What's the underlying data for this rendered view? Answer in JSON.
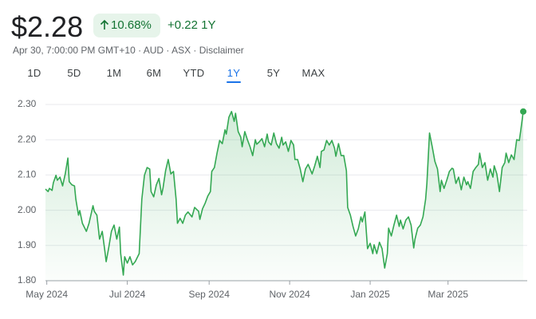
{
  "header": {
    "price": "$2.28",
    "change_percent": "10.68%",
    "change": "+0.22 1Y",
    "subline": "Apr 30, 7:00:00 PM GMT+10 · AUD · ASX · Disclaimer",
    "tabs": [
      "1D",
      "5D",
      "1M",
      "6M",
      "YTD",
      "1Y",
      "5Y",
      "MAX"
    ],
    "selected_tab": "1Y"
  },
  "chart_data": {
    "type": "line",
    "color": "#34a853",
    "grid": true,
    "ylim": [
      1.8,
      2.3
    ],
    "yticks": [
      {
        "value": 1.8,
        "label": "1.80"
      },
      {
        "value": 1.9,
        "label": "1.90"
      },
      {
        "value": 2.0,
        "label": "2.00"
      },
      {
        "value": 2.1,
        "label": "2.10"
      },
      {
        "value": 2.2,
        "label": "2.20"
      },
      {
        "value": 2.3,
        "label": "2.30"
      }
    ],
    "xlim": [
      -1,
      364
    ],
    "xticks": [
      {
        "value": 0,
        "label": "May 2024"
      },
      {
        "value": 61,
        "label": "Jul 2024"
      },
      {
        "value": 123,
        "label": "Sep 2024"
      },
      {
        "value": 184,
        "label": "Nov 2024"
      },
      {
        "value": 245,
        "label": "Jan 2025"
      },
      {
        "value": 304,
        "label": "Mar 2025"
      }
    ],
    "x": [
      -1,
      1,
      2,
      4,
      5,
      7,
      8,
      10,
      12,
      14,
      16,
      17,
      19,
      21,
      22,
      24,
      25,
      27,
      30,
      32,
      35,
      36,
      38,
      40,
      42,
      44,
      45,
      47,
      49,
      51,
      53,
      55,
      56,
      58,
      59,
      61,
      63,
      65,
      67,
      70,
      72,
      74,
      76,
      78,
      79,
      81,
      83,
      85,
      87,
      88,
      90,
      92,
      94,
      96,
      98,
      99,
      101,
      103,
      105,
      107,
      110,
      112,
      115,
      116,
      118,
      120,
      122,
      124,
      125,
      127,
      129,
      131,
      133,
      135,
      136,
      138,
      140,
      142,
      143,
      145,
      147,
      148,
      150,
      152,
      154,
      156,
      158,
      159,
      161,
      163,
      165,
      167,
      168,
      170,
      172,
      174,
      176,
      178,
      179,
      181,
      183,
      185,
      187,
      188,
      190,
      192,
      194,
      196,
      198,
      199,
      201,
      203,
      205,
      207,
      208,
      210,
      212,
      214,
      216,
      218,
      219,
      221,
      223,
      225,
      227,
      228,
      230,
      232,
      234,
      236,
      238,
      239,
      241,
      243,
      245,
      247,
      248,
      250,
      252,
      254,
      256,
      258,
      259,
      261,
      263,
      265,
      267,
      268,
      270,
      272,
      274,
      276,
      278,
      279,
      281,
      283,
      285,
      287,
      288,
      290,
      292,
      294,
      296,
      298,
      299,
      301,
      303,
      305,
      307,
      308,
      310,
      312,
      314,
      316,
      318,
      319,
      321,
      323,
      325,
      327,
      328,
      330,
      332,
      334,
      336,
      338,
      339,
      341,
      343,
      345,
      347,
      348,
      350,
      352,
      354,
      356,
      358,
      359,
      361
    ],
    "values": [
      2.06,
      2.053,
      2.062,
      2.056,
      2.078,
      2.099,
      2.085,
      2.094,
      2.069,
      2.103,
      2.148,
      2.081,
      2.072,
      2.069,
      2.031,
      1.986,
      1.999,
      1.963,
      1.94,
      1.963,
      2.013,
      1.997,
      1.986,
      1.918,
      1.94,
      1.884,
      1.854,
      1.895,
      1.94,
      1.958,
      1.918,
      1.952,
      1.877,
      1.816,
      1.868,
      1.85,
      1.868,
      1.845,
      1.854,
      1.877,
      2.031,
      2.099,
      2.121,
      2.117,
      2.053,
      2.038,
      2.072,
      2.09,
      2.044,
      2.062,
      2.112,
      2.144,
      2.103,
      2.11,
      2.031,
      1.963,
      1.977,
      1.963,
      1.986,
      1.995,
      1.981,
      2.008,
      1.997,
      1.974,
      2.004,
      2.02,
      2.04,
      2.053,
      2.11,
      2.121,
      2.162,
      2.198,
      2.189,
      2.228,
      2.216,
      2.264,
      2.28,
      2.252,
      2.275,
      2.223,
      2.207,
      2.18,
      2.223,
      2.2,
      2.18,
      2.155,
      2.2,
      2.187,
      2.194,
      2.203,
      2.18,
      2.216,
      2.194,
      2.185,
      2.219,
      2.189,
      2.176,
      2.207,
      2.185,
      2.194,
      2.167,
      2.198,
      2.185,
      2.144,
      2.144,
      2.117,
      2.081,
      2.117,
      2.13,
      2.121,
      2.103,
      2.126,
      2.153,
      2.121,
      2.167,
      2.171,
      2.198,
      2.185,
      2.198,
      2.176,
      2.153,
      2.189,
      2.155,
      2.155,
      2.112,
      2.008,
      1.986,
      1.954,
      1.927,
      1.947,
      1.981,
      1.967,
      1.995,
      1.891,
      1.906,
      1.877,
      1.902,
      1.877,
      1.909,
      1.891,
      1.836,
      1.877,
      1.949,
      1.927,
      1.958,
      1.986,
      1.954,
      1.972,
      1.947,
      1.972,
      1.981,
      1.958,
      1.893,
      1.918,
      1.949,
      1.958,
      1.981,
      2.031,
      2.076,
      2.219,
      2.18,
      2.139,
      2.117,
      2.053,
      2.085,
      2.062,
      2.085,
      2.11,
      2.119,
      2.117,
      2.076,
      2.094,
      2.058,
      2.094,
      2.072,
      2.081,
      2.062,
      2.11,
      2.121,
      2.13,
      2.162,
      2.121,
      2.135,
      2.085,
      2.117,
      2.094,
      2.126,
      2.103,
      2.053,
      2.121,
      2.135,
      2.162,
      2.135,
      2.157,
      2.144,
      2.2,
      2.198,
      2.223,
      2.28
    ]
  }
}
